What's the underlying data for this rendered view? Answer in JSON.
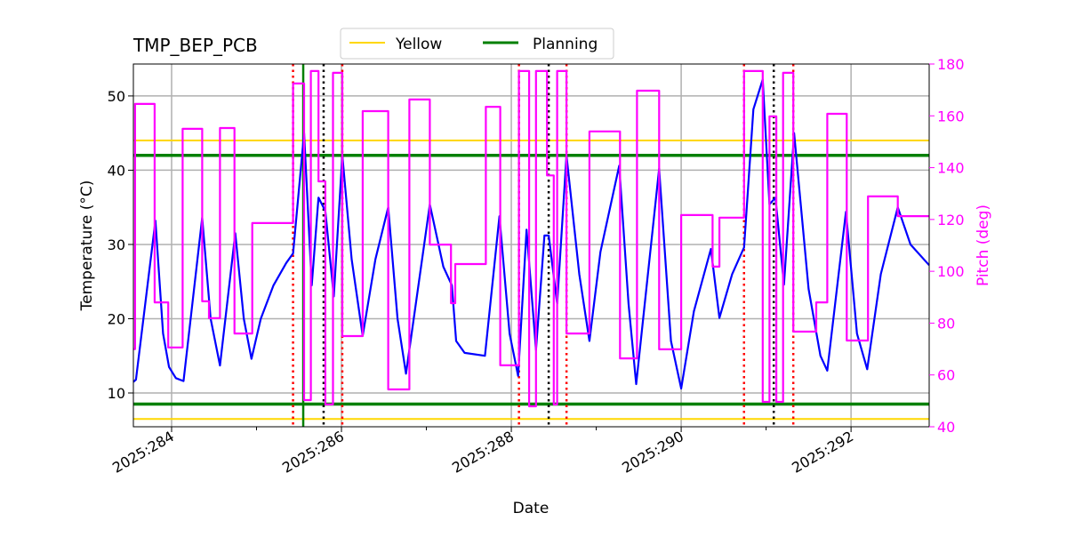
{
  "chart_data": {
    "type": "line",
    "title": "TMP_BEP_PCB",
    "xlabel": "Date",
    "ylabel": "Temperature ($^\\circ$C)",
    "ylabel_display": "Temperature (°C)",
    "y2label": "Pitch (deg)",
    "xlim": [
      283.55,
      292.92
    ],
    "ylim": [
      5.45,
      54.3
    ],
    "y2lim": [
      40,
      180
    ],
    "x_ticks": [
      {
        "value": 284,
        "label": "2025:284"
      },
      {
        "value": 286,
        "label": "2025:286"
      },
      {
        "value": 288,
        "label": "2025:288"
      },
      {
        "value": 290,
        "label": "2025:290"
      },
      {
        "value": 292,
        "label": "2025:292"
      }
    ],
    "x_minor_ticks": [
      285,
      287,
      289,
      291
    ],
    "y_ticks": [
      10,
      20,
      30,
      40,
      50
    ],
    "y2_ticks": [
      40,
      60,
      80,
      100,
      120,
      140,
      160,
      180
    ],
    "grid": true,
    "legend": {
      "placement": "top-center",
      "entries": [
        {
          "label": "Yellow",
          "color": "#ffd700"
        },
        {
          "label": "Planning",
          "color": "#008000"
        }
      ]
    },
    "limits": [
      {
        "name": "yellow-high",
        "value": 44,
        "color": "#ffd700"
      },
      {
        "name": "yellow-low",
        "value": 6.5,
        "color": "#ffd700"
      },
      {
        "name": "planning-high",
        "value": 42,
        "color": "#008000"
      },
      {
        "name": "planning-low",
        "value": 8.5,
        "color": "#008000"
      }
    ],
    "planning_vline": {
      "x": 285.55,
      "color": "#008000"
    },
    "red_dotted_vlines": [
      285.43,
      286.01,
      288.09,
      288.65,
      290.74,
      291.32
    ],
    "black_dotted_vlines": [
      285.79,
      288.44,
      291.09
    ],
    "series": [
      {
        "name": "Temperature",
        "axis": "left",
        "color": "#0000ff",
        "points": [
          [
            283.55,
            11.5
          ],
          [
            283.58,
            11.8
          ],
          [
            283.81,
            33.2
          ],
          [
            283.9,
            18
          ],
          [
            283.97,
            13.5
          ],
          [
            284.05,
            12
          ],
          [
            284.14,
            11.6
          ],
          [
            284.36,
            33.6
          ],
          [
            284.46,
            20
          ],
          [
            284.57,
            13.7
          ],
          [
            284.75,
            31.5
          ],
          [
            284.85,
            20
          ],
          [
            284.94,
            14.6
          ],
          [
            285.05,
            20
          ],
          [
            285.2,
            24.5
          ],
          [
            285.35,
            27.5
          ],
          [
            285.43,
            28.8
          ],
          [
            285.56,
            45
          ],
          [
            285.65,
            24.5
          ],
          [
            285.73,
            36.3
          ],
          [
            285.81,
            34.5
          ],
          [
            285.91,
            23
          ],
          [
            286.01,
            42
          ],
          [
            286.12,
            28
          ],
          [
            286.25,
            17.7
          ],
          [
            286.4,
            28
          ],
          [
            286.55,
            35
          ],
          [
            286.66,
            20
          ],
          [
            286.76,
            12.6
          ],
          [
            287.04,
            35.4
          ],
          [
            287.2,
            27
          ],
          [
            287.3,
            24.5
          ],
          [
            287.35,
            17
          ],
          [
            287.45,
            15.4
          ],
          [
            287.69,
            15
          ],
          [
            287.86,
            33.8
          ],
          [
            287.98,
            18
          ],
          [
            288.08,
            12.3
          ],
          [
            288.18,
            32
          ],
          [
            288.29,
            15.8
          ],
          [
            288.39,
            31.2
          ],
          [
            288.44,
            31.2
          ],
          [
            288.54,
            22
          ],
          [
            288.65,
            42
          ],
          [
            288.8,
            26
          ],
          [
            288.92,
            17
          ],
          [
            289.05,
            29
          ],
          [
            289.27,
            40.6
          ],
          [
            289.38,
            22
          ],
          [
            289.47,
            11.2
          ],
          [
            289.74,
            40.2
          ],
          [
            289.88,
            17
          ],
          [
            290.0,
            10.6
          ],
          [
            290.15,
            21
          ],
          [
            290.35,
            29.4
          ],
          [
            290.45,
            20.1
          ],
          [
            290.6,
            26
          ],
          [
            290.74,
            29.6
          ],
          [
            290.85,
            48.2
          ],
          [
            290.96,
            52.2
          ],
          [
            291.04,
            35.4
          ],
          [
            291.11,
            36.3
          ],
          [
            291.21,
            24.6
          ],
          [
            291.33,
            45
          ],
          [
            291.5,
            24
          ],
          [
            291.64,
            15
          ],
          [
            291.72,
            13
          ],
          [
            291.94,
            34.4
          ],
          [
            292.07,
            18
          ],
          [
            292.19,
            13.2
          ],
          [
            292.35,
            26
          ],
          [
            292.55,
            35
          ],
          [
            292.7,
            30
          ],
          [
            292.92,
            27.2
          ]
        ]
      },
      {
        "name": "Pitch",
        "axis": "right",
        "color": "#ff00ff",
        "step": "post",
        "points": [
          [
            283.55,
            70
          ],
          [
            283.57,
            164.6
          ],
          [
            283.8,
            88
          ],
          [
            283.96,
            70.6
          ],
          [
            284.13,
            155
          ],
          [
            284.36,
            88.4
          ],
          [
            284.44,
            81.9
          ],
          [
            284.57,
            155.3
          ],
          [
            284.74,
            76
          ],
          [
            284.95,
            118.6
          ],
          [
            285.43,
            172.5
          ],
          [
            285.56,
            50.3
          ],
          [
            285.64,
            177.3
          ],
          [
            285.73,
            134.7
          ],
          [
            285.81,
            48.6
          ],
          [
            285.9,
            176.6
          ],
          [
            286.01,
            75
          ],
          [
            286.25,
            161.8
          ],
          [
            286.55,
            54.4
          ],
          [
            286.8,
            166.3
          ],
          [
            287.04,
            110.3
          ],
          [
            287.29,
            87.7
          ],
          [
            287.34,
            102.8
          ],
          [
            287.7,
            163.5
          ],
          [
            287.87,
            63.7
          ],
          [
            288.09,
            177.3
          ],
          [
            288.21,
            47.9
          ],
          [
            288.29,
            177.3
          ],
          [
            288.42,
            137
          ],
          [
            288.5,
            48.6
          ],
          [
            288.54,
            177.3
          ],
          [
            288.65,
            76
          ],
          [
            288.92,
            154
          ],
          [
            289.28,
            66.4
          ],
          [
            289.48,
            169.7
          ],
          [
            289.74,
            69.9
          ],
          [
            290.0,
            121.7
          ],
          [
            290.37,
            101.8
          ],
          [
            290.45,
            120.7
          ],
          [
            290.74,
            177.3
          ],
          [
            290.96,
            49.6
          ],
          [
            291.04,
            159.8
          ],
          [
            291.12,
            49.6
          ],
          [
            291.2,
            176.6
          ],
          [
            291.32,
            76.7
          ],
          [
            291.59,
            88
          ],
          [
            291.72,
            160.8
          ],
          [
            291.95,
            73.3
          ],
          [
            292.2,
            128.9
          ],
          [
            292.55,
            121.3
          ],
          [
            292.92,
            121.3
          ]
        ]
      }
    ]
  }
}
